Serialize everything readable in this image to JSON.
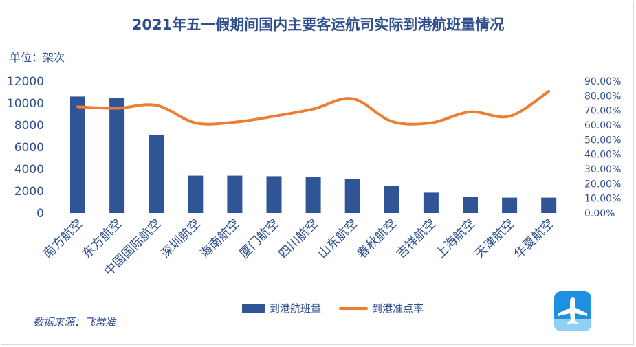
{
  "page": {
    "title": "2021年五一假期间国内主要客运航司实际到港航班量情况",
    "unit_label": "单位：架次",
    "source": "数据来源：飞常准"
  },
  "colors": {
    "bar": "#2f5597",
    "line": "#ed7d31",
    "text": "#2f4f8f",
    "logo": "#1e90e0"
  },
  "icons": {
    "logo": "plane-icon"
  },
  "chart_data": {
    "type": "bar",
    "title": "2021年五一假期间国内主要客运航司实际到港航班量情况",
    "categories": [
      "南方航空",
      "东方航空",
      "中国国际航空",
      "深圳航空",
      "海南航空",
      "厦门航空",
      "四川航空",
      "山东航空",
      "春秋航空",
      "吉祥航空",
      "上海航空",
      "天津航空",
      "华夏航空"
    ],
    "series": [
      {
        "name": "到港航班量",
        "type": "bar",
        "axis": "left",
        "values": [
          10600,
          10450,
          7100,
          3400,
          3400,
          3350,
          3280,
          3100,
          2450,
          1850,
          1500,
          1400,
          1400
        ]
      },
      {
        "name": "到港准点率",
        "type": "line",
        "axis": "right",
        "values": [
          72.5,
          71.5,
          73.5,
          61.5,
          62.0,
          66.0,
          71.0,
          78.0,
          62.5,
          61.5,
          69.0,
          66.0,
          83.0
        ]
      }
    ],
    "y_left": {
      "min": 0,
      "max": 12000,
      "ticks": [
        "0",
        "2000",
        "4000",
        "6000",
        "8000",
        "10000",
        "12000"
      ]
    },
    "y_right": {
      "min": 0,
      "max": 90,
      "ticks": [
        "0.00%",
        "10.00%",
        "20.00%",
        "30.00%",
        "40.00%",
        "50.00%",
        "60.00%",
        "70.00%",
        "80.00%",
        "90.00%"
      ]
    },
    "grid": false,
    "legend_position": "bottom"
  }
}
